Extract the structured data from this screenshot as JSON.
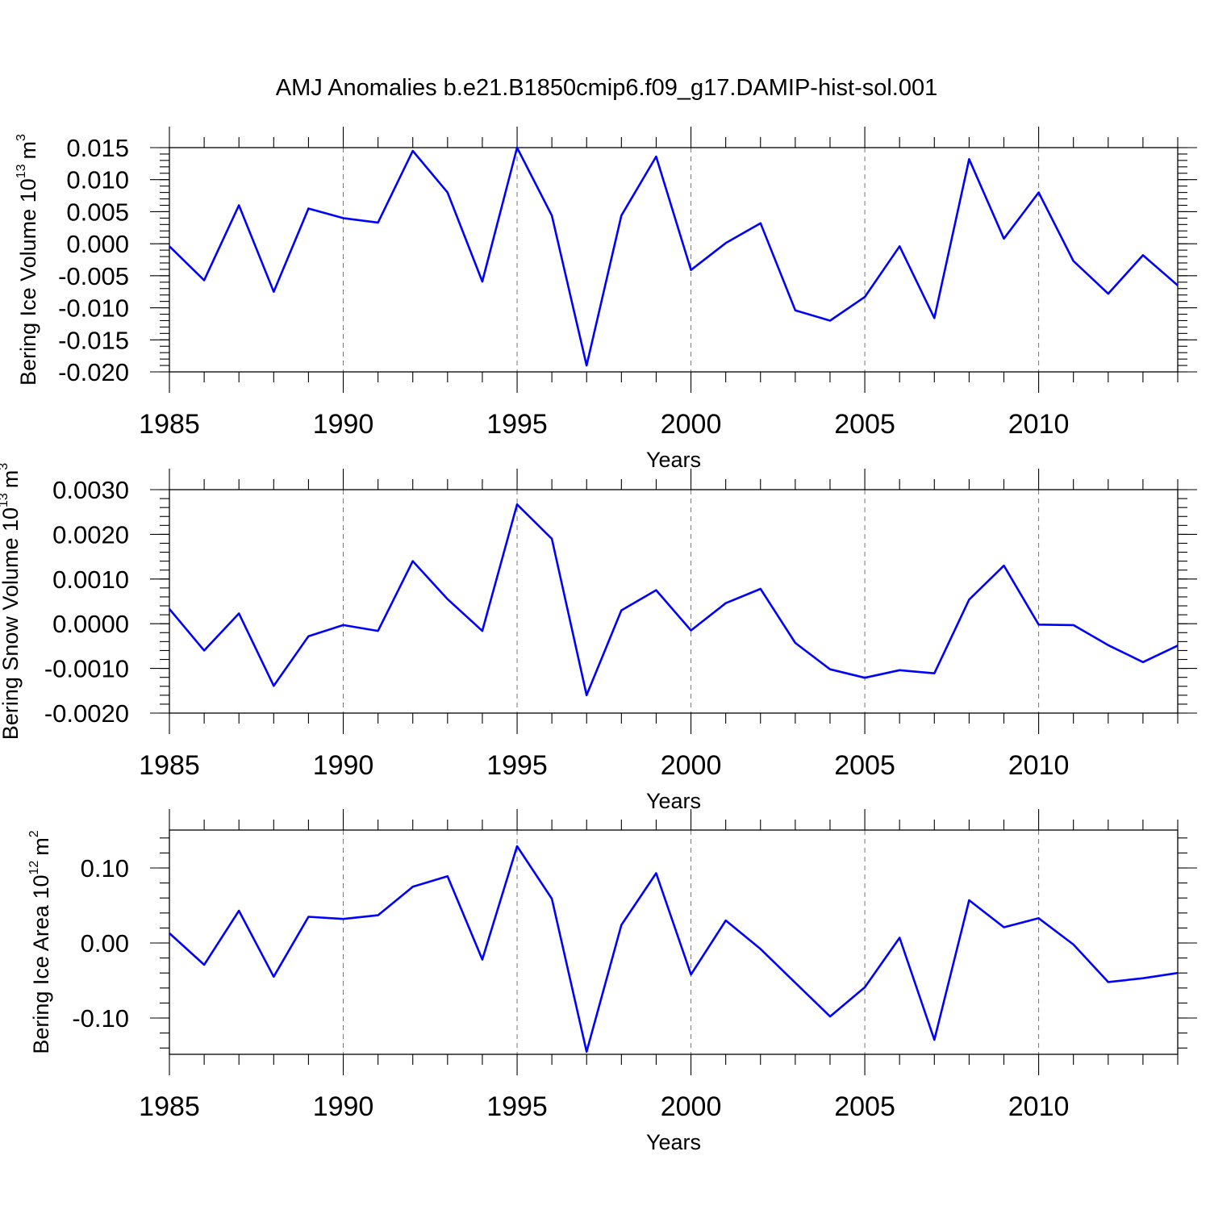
{
  "title": "AMJ Anomalies b.e21.B1850cmip6.f09_g17.DAMIP-hist-sol.001",
  "line_color": "#0000ff",
  "grid_color": "#777777",
  "chart_data": [
    {
      "type": "line",
      "ylabel": "Bering Ice Volume 10",
      "ylabel_exp": "13",
      "ylabel_unit": "m",
      "ylabel_unit_exp": "3",
      "xlabel": "Years",
      "xlim": [
        1985,
        2014
      ],
      "ylim": [
        -0.02,
        0.015
      ],
      "xticks": [
        "1985",
        "1990",
        "1995",
        "2000",
        "2005",
        "2010"
      ],
      "yticks": [
        "0.015",
        "0.010",
        "0.005",
        "0.000",
        "-0.005",
        "-0.010",
        "-0.015",
        "-0.020"
      ],
      "grid": "vertical dashed at major x ticks",
      "x": [
        1985,
        1986,
        1987,
        1988,
        1989,
        1990,
        1991,
        1992,
        1993,
        1994,
        1995,
        1996,
        1997,
        1998,
        1999,
        2000,
        2001,
        2002,
        2003,
        2004,
        2005,
        2006,
        2007,
        2008,
        2009,
        2010,
        2011,
        2012,
        2013,
        2014
      ],
      "values": [
        -0.0004,
        -0.0057,
        0.006,
        -0.0075,
        0.0055,
        0.004,
        0.0033,
        0.0145,
        0.008,
        -0.0059,
        0.015,
        0.0044,
        -0.019,
        0.0044,
        0.0136,
        -0.0041,
        0.0001,
        0.0032,
        -0.0104,
        -0.012,
        -0.0083,
        -0.0004,
        -0.0116,
        0.0132,
        0.0008,
        0.008,
        -0.0027,
        -0.0078,
        -0.0018,
        -0.0065
      ]
    },
    {
      "type": "line",
      "ylabel": "Bering Snow Volume 10",
      "ylabel_exp": "13",
      "ylabel_unit": "m",
      "ylabel_unit_exp": "3",
      "xlabel": "Years",
      "xlim": [
        1985,
        2014
      ],
      "ylim": [
        -0.002,
        0.003
      ],
      "xticks": [
        "1985",
        "1990",
        "1995",
        "2000",
        "2005",
        "2010"
      ],
      "yticks": [
        "0.0030",
        "0.0020",
        "0.0010",
        "0.0000",
        "-0.0010",
        "-0.0020"
      ],
      "grid": "vertical dashed at major x ticks",
      "x": [
        1985,
        1986,
        1987,
        1988,
        1989,
        1990,
        1991,
        1992,
        1993,
        1994,
        1995,
        1996,
        1997,
        1998,
        1999,
        2000,
        2001,
        2002,
        2003,
        2004,
        2005,
        2006,
        2007,
        2008,
        2009,
        2010,
        2011,
        2012,
        2013,
        2014
      ],
      "values": [
        0.00033,
        -0.0006,
        0.00023,
        -0.00139,
        -0.00028,
        -3e-05,
        -0.00016,
        0.0014,
        0.00055,
        -0.00016,
        0.00267,
        0.0019,
        -0.0016,
        0.0003,
        0.00075,
        -0.00015,
        0.00046,
        0.00078,
        -0.00043,
        -0.00102,
        -0.00121,
        -0.00104,
        -0.00111,
        0.00054,
        0.0013,
        -2e-05,
        -3e-05,
        -0.00048,
        -0.00086,
        -0.00049
      ]
    },
    {
      "type": "line",
      "ylabel": "Bering Ice Area 10",
      "ylabel_exp": "12",
      "ylabel_unit": "m",
      "ylabel_unit_exp": "2",
      "xlabel": "Years",
      "xlim": [
        1985,
        2014
      ],
      "ylim": [
        -0.149,
        0.151
      ],
      "xticks": [
        "1985",
        "1990",
        "1995",
        "2000",
        "2005",
        "2010"
      ],
      "yticks": [
        "0.10",
        "0.00",
        "-0.10"
      ],
      "grid": "vertical dashed at major x ticks",
      "x": [
        1985,
        1986,
        1987,
        1988,
        1989,
        1990,
        1991,
        1992,
        1993,
        1994,
        1995,
        1996,
        1997,
        1998,
        1999,
        2000,
        2001,
        2002,
        2003,
        2004,
        2005,
        2006,
        2007,
        2008,
        2009,
        2010,
        2011,
        2012,
        2013,
        2014
      ],
      "values": [
        0.013,
        -0.029,
        0.043,
        -0.045,
        0.035,
        0.032,
        0.037,
        0.075,
        0.089,
        -0.022,
        0.129,
        0.059,
        -0.145,
        0.024,
        0.093,
        -0.042,
        0.03,
        -0.008,
        -0.053,
        -0.098,
        -0.059,
        0.007,
        -0.129,
        0.057,
        0.021,
        0.033,
        -0.002,
        -0.052,
        -0.047,
        -0.04
      ]
    }
  ]
}
